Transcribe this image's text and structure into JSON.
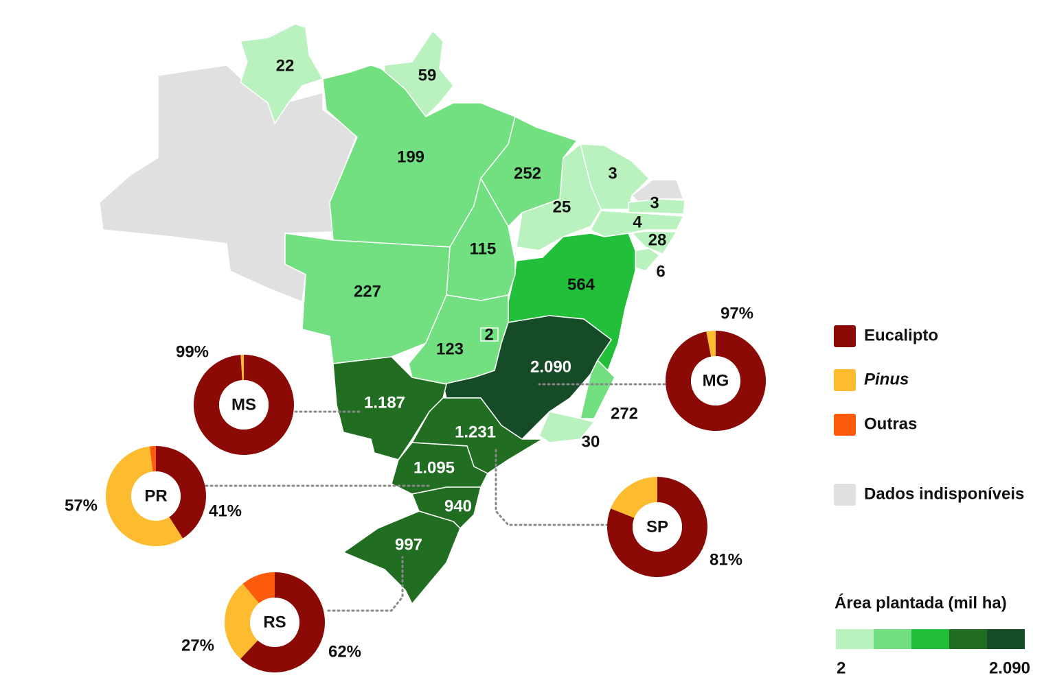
{
  "map": {
    "unavailable_color": "#e0e0e0",
    "regions": [
      {
        "value": 22,
        "label": "22",
        "color": "#b9f2bf"
      },
      {
        "value": 59,
        "label": "59",
        "color": "#b9f2bf"
      },
      {
        "value": 199,
        "label": "199",
        "color": "#72df80"
      },
      {
        "value": 252,
        "label": "252",
        "color": "#72df80"
      },
      {
        "value": 3,
        "label": "3",
        "color": "#b9f2bf"
      },
      {
        "value": 25,
        "label": "25",
        "color": "#b9f2bf"
      },
      {
        "value": 3,
        "label": "3",
        "color": "#b9f2bf"
      },
      {
        "value": 4,
        "label": "4",
        "color": "#b9f2bf"
      },
      {
        "value": 28,
        "label": "28",
        "color": "#b9f2bf"
      },
      {
        "value": 6,
        "label": "6",
        "color": "#b9f2bf"
      },
      {
        "value": 564,
        "label": "564",
        "color": "#22c03a"
      },
      {
        "value": 115,
        "label": "115",
        "color": "#72df80"
      },
      {
        "value": 227,
        "label": "227",
        "color": "#72df80"
      },
      {
        "value": 123,
        "label": "123",
        "color": "#72df80"
      },
      {
        "value": 2,
        "label": "2",
        "color": "#72df80"
      },
      {
        "value": 2090,
        "label": "2.090",
        "color": "#164b27"
      },
      {
        "value": 272,
        "label": "272",
        "color": "#72df80"
      },
      {
        "value": 30,
        "label": "30",
        "color": "#b9f2bf"
      },
      {
        "value": 1187,
        "label": "1.187",
        "color": "#216e22"
      },
      {
        "value": 1231,
        "label": "1.231",
        "color": "#216e22"
      },
      {
        "value": 1095,
        "label": "1.095",
        "color": "#216e22"
      },
      {
        "value": 940,
        "label": "940",
        "color": "#216e22"
      },
      {
        "value": 997,
        "label": "997",
        "color": "#216e22"
      }
    ]
  },
  "series": [
    {
      "name": "Eucalipto",
      "color": "#8b0a05"
    },
    {
      "name": "Pinus",
      "color": "#fdbb30"
    },
    {
      "name": "Outras",
      "color": "#fe5b0c"
    }
  ],
  "donuts": [
    {
      "title": "MS",
      "values": [
        99,
        1,
        0
      ],
      "value_labels": [
        "99%",
        null,
        null
      ]
    },
    {
      "title": "MG",
      "values": [
        97,
        3,
        0
      ],
      "value_labels": [
        "97%",
        null,
        null
      ]
    },
    {
      "title": "PR",
      "values": [
        41,
        57,
        2
      ],
      "value_labels": [
        "41%",
        "57%",
        null
      ]
    },
    {
      "title": "SP",
      "values": [
        81,
        19,
        0
      ],
      "value_labels": [
        "81%",
        null,
        null
      ]
    },
    {
      "title": "RS",
      "values": [
        62,
        27,
        11
      ],
      "value_labels": [
        "62%",
        "27%",
        null
      ]
    }
  ],
  "legend": {
    "unavailable": "Dados indisponíveis",
    "scale_title": "Área plantada (mil ha)",
    "scale_colors": [
      "#b9f2bf",
      "#72df80",
      "#22c03a",
      "#216e22",
      "#164b27"
    ],
    "scale_min": {
      "value": 2,
      "label": "2"
    },
    "scale_max": {
      "value": 2090,
      "label": "2.090"
    }
  }
}
